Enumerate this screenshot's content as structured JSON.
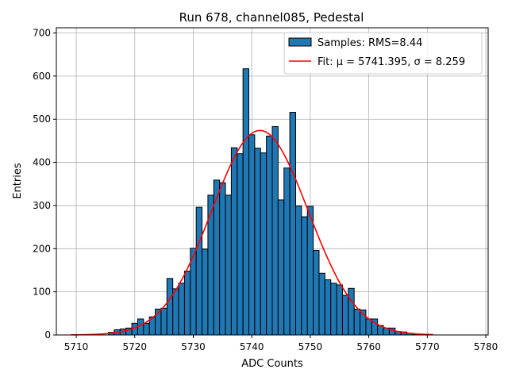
{
  "chart_data": {
    "type": "bar",
    "title": "Run 678, channel085, Pedestal",
    "xlabel": "ADC Counts",
    "ylabel": "Entries",
    "xlim": [
      5706.6,
      5780.4
    ],
    "ylim": [
      0,
      712
    ],
    "grid": true,
    "legend_position": "top-right",
    "xticks": [
      5710,
      5720,
      5730,
      5740,
      5750,
      5760,
      5770,
      5780
    ],
    "yticks": [
      0,
      100,
      200,
      300,
      400,
      500,
      600,
      700
    ],
    "bin_width": 1,
    "colors": {
      "bars": "#1f77b4",
      "edge": "#000000",
      "fit": "#ff0000",
      "grid": "#b0b0b0"
    },
    "series": [
      {
        "name": "Samples: RMS=8.44",
        "kind": "histogram",
        "bins": [
          {
            "x": 5716,
            "y": 6
          },
          {
            "x": 5717,
            "y": 12
          },
          {
            "x": 5718,
            "y": 14
          },
          {
            "x": 5719,
            "y": 16
          },
          {
            "x": 5720,
            "y": 27
          },
          {
            "x": 5721,
            "y": 37
          },
          {
            "x": 5722,
            "y": 27
          },
          {
            "x": 5723,
            "y": 42
          },
          {
            "x": 5724,
            "y": 60
          },
          {
            "x": 5725,
            "y": 62
          },
          {
            "x": 5726,
            "y": 131
          },
          {
            "x": 5727,
            "y": 107
          },
          {
            "x": 5728,
            "y": 120
          },
          {
            "x": 5729,
            "y": 148
          },
          {
            "x": 5730,
            "y": 201
          },
          {
            "x": 5731,
            "y": 296
          },
          {
            "x": 5732,
            "y": 199
          },
          {
            "x": 5733,
            "y": 324
          },
          {
            "x": 5734,
            "y": 359
          },
          {
            "x": 5735,
            "y": 353
          },
          {
            "x": 5736,
            "y": 324
          },
          {
            "x": 5737,
            "y": 434
          },
          {
            "x": 5738,
            "y": 420
          },
          {
            "x": 5739,
            "y": 617
          },
          {
            "x": 5740,
            "y": 464
          },
          {
            "x": 5741,
            "y": 433
          },
          {
            "x": 5742,
            "y": 422
          },
          {
            "x": 5743,
            "y": 461
          },
          {
            "x": 5744,
            "y": 483
          },
          {
            "x": 5745,
            "y": 313
          },
          {
            "x": 5746,
            "y": 387
          },
          {
            "x": 5747,
            "y": 516
          },
          {
            "x": 5748,
            "y": 299
          },
          {
            "x": 5749,
            "y": 274
          },
          {
            "x": 5750,
            "y": 298
          },
          {
            "x": 5751,
            "y": 196
          },
          {
            "x": 5752,
            "y": 143
          },
          {
            "x": 5753,
            "y": 128
          },
          {
            "x": 5754,
            "y": 120
          },
          {
            "x": 5755,
            "y": 116
          },
          {
            "x": 5756,
            "y": 92
          },
          {
            "x": 5757,
            "y": 108
          },
          {
            "x": 5758,
            "y": 60
          },
          {
            "x": 5759,
            "y": 58
          },
          {
            "x": 5760,
            "y": 37
          },
          {
            "x": 5761,
            "y": 37
          },
          {
            "x": 5762,
            "y": 22
          },
          {
            "x": 5763,
            "y": 16
          },
          {
            "x": 5764,
            "y": 16
          },
          {
            "x": 5765,
            "y": 8
          },
          {
            "x": 5766,
            "y": 7
          },
          {
            "x": 5767,
            "y": 4
          },
          {
            "x": 5768,
            "y": 2
          }
        ]
      },
      {
        "name": "Fit: μ = 5741.395, σ = 8.259",
        "kind": "gaussian-fit",
        "mu": 5741.395,
        "sigma": 8.259,
        "amplitude": 474,
        "x_range": [
          5709,
          5771
        ]
      }
    ]
  }
}
